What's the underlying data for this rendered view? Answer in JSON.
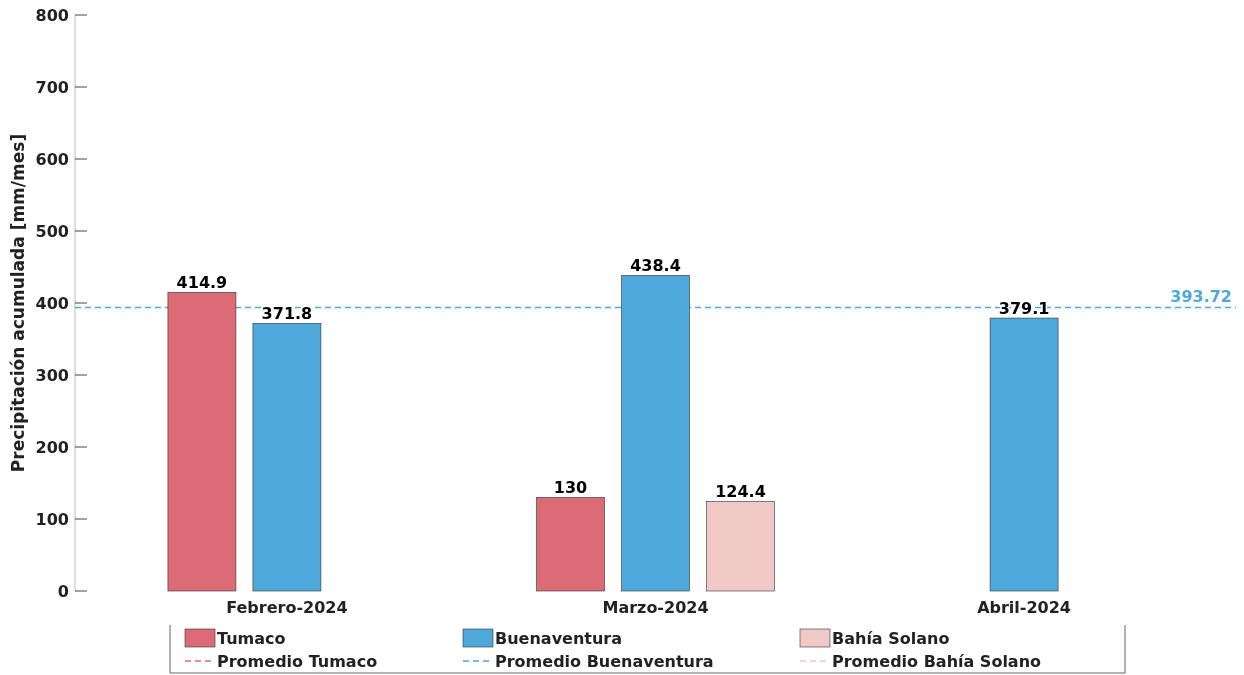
{
  "chart_data": {
    "type": "bar",
    "ylabel": "Precipitación acumulada [mm/mes]",
    "categories": [
      "Febrero-2024",
      "Marzo-2024",
      "Abril-2024"
    ],
    "series": [
      {
        "name": "Tumaco",
        "color": "#dc6b75",
        "values": [
          414.9,
          130,
          null
        ]
      },
      {
        "name": "Buenaventura",
        "color": "#4ea8da",
        "values": [
          371.8,
          438.4,
          379.1
        ]
      },
      {
        "name": "Bahía Solano",
        "color": "#f0c8c6",
        "values": [
          null,
          124.4,
          null
        ]
      },
      {
        "name": "Promedio Tumaco",
        "type": "line",
        "line_style": "dashed",
        "color": "#dc6b75",
        "values": [
          null,
          null,
          null
        ]
      },
      {
        "name": "Promedio Buenaventura",
        "type": "line",
        "line_style": "dashed",
        "color": "#4ea8da",
        "values": [
          null,
          null,
          null
        ]
      },
      {
        "name": "Promedio Bahía Solano",
        "type": "line",
        "line_style": "dashed",
        "color": "#f0c8c6",
        "values": [
          null,
          null,
          null
        ]
      }
    ],
    "ref_lines": [
      {
        "axis": "y",
        "value": 393.72,
        "label": "393.72",
        "color": "#4ea8da",
        "line_style": "dashed"
      }
    ],
    "ylim": [
      0,
      800
    ],
    "yticks": [
      0,
      100,
      200,
      300,
      400,
      500,
      600,
      700,
      800
    ],
    "data_labels": true,
    "grid": false,
    "legend": "bottom"
  }
}
